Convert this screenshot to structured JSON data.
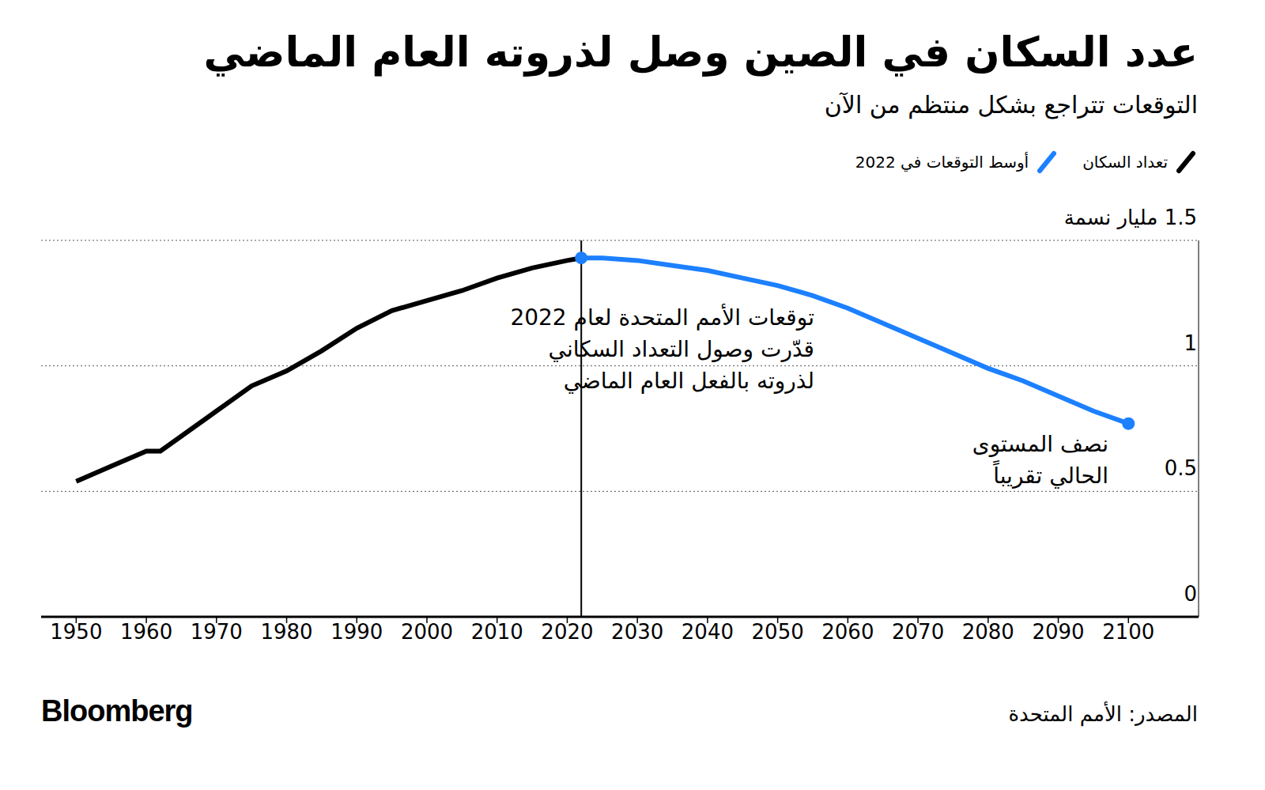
{
  "chart_data": {
    "type": "line",
    "title": "عدد السكان في الصين وصل لذروته العام الماضي",
    "subtitle": "التوقعات تتراجع بشكل منتظم من الآن",
    "source": "المصدر: الأمم المتحدة",
    "credit": "Bloomberg",
    "x": [
      1950,
      1955,
      1960,
      1962,
      1965,
      1970,
      1975,
      1980,
      1985,
      1990,
      1995,
      2000,
      2005,
      2010,
      2015,
      2020,
      2022,
      2025,
      2030,
      2035,
      2040,
      2045,
      2050,
      2055,
      2060,
      2065,
      2070,
      2075,
      2080,
      2085,
      2090,
      2095,
      2100
    ],
    "series": [
      {
        "name": "تعداد السكان",
        "color": "#000000",
        "values": [
          0.54,
          0.6,
          0.66,
          0.66,
          0.72,
          0.82,
          0.92,
          0.98,
          1.06,
          1.15,
          1.22,
          1.26,
          1.3,
          1.35,
          1.39,
          1.42,
          1.43,
          null,
          null,
          null,
          null,
          null,
          null,
          null,
          null,
          null,
          null,
          null,
          null,
          null,
          null,
          null,
          null
        ]
      },
      {
        "name": "أوسط التوقعات في 2022",
        "color": "#1c80ff",
        "marker": "endpoints",
        "values": [
          null,
          null,
          null,
          null,
          null,
          null,
          null,
          null,
          null,
          null,
          null,
          null,
          null,
          null,
          null,
          null,
          1.43,
          1.43,
          1.42,
          1.4,
          1.38,
          1.35,
          1.32,
          1.28,
          1.23,
          1.17,
          1.11,
          1.05,
          0.99,
          0.94,
          0.88,
          0.82,
          0.77
        ]
      }
    ],
    "xlim": [
      1945,
      2110
    ],
    "xticks": [
      1950,
      1960,
      1970,
      1980,
      1990,
      2000,
      2010,
      2020,
      2030,
      2040,
      2050,
      2060,
      2070,
      2080,
      2090,
      2100
    ],
    "ylim": [
      0,
      1.5
    ],
    "yticks": [
      0,
      0.5,
      1,
      {
        "value": 1.5,
        "label": "1.5 مليار نسمة"
      }
    ],
    "grid": true,
    "legend": "top-right",
    "annotations": [
      {
        "text": [
          "توقعات الأمم المتحدة لعام 2022",
          "قدّرت وصول التعداد السكاني",
          "لذروته بالفعل العام الماضي"
        ],
        "x": 2022
      },
      {
        "text": [
          "نصف المستوى",
          "الحالي تقريباً"
        ]
      }
    ]
  }
}
